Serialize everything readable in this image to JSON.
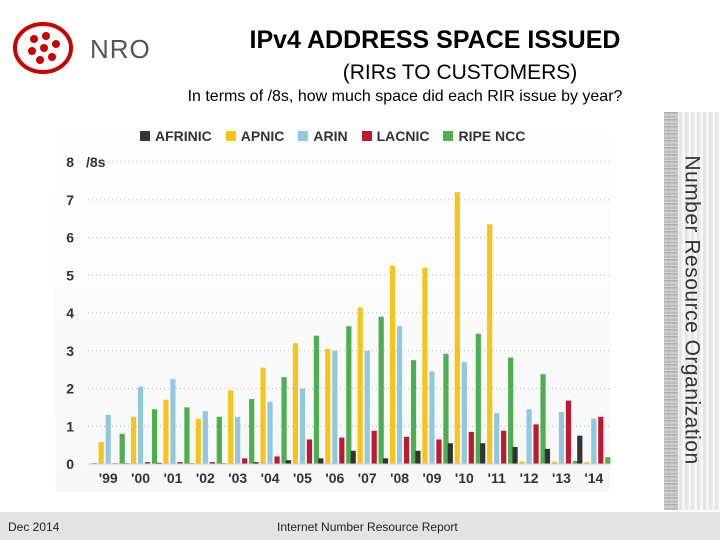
{
  "title": "IPv4 ADDRESS SPACE ISSUED",
  "subtitle": "(RIRs TO CUSTOMERS)",
  "question": "In terms of /8s, how much space did each RIR issue by year?",
  "logo": {
    "text": "NRO",
    "icon": "nro-dots-logo",
    "color": "#cc0000"
  },
  "side_label": "Number Resource Organization",
  "footer": {
    "date": "Dec 2014",
    "report": "Internet Number Resource Report"
  },
  "chart_data": {
    "type": "bar",
    "title": "",
    "xlabel": "",
    "ylabel": "/8s",
    "ylim": [
      0,
      8
    ],
    "yticks": [
      0,
      1,
      2,
      3,
      4,
      5,
      6,
      7,
      8
    ],
    "categories": [
      "'99",
      "'00",
      "'01",
      "'02",
      "'03",
      "'04",
      "'05",
      "'06",
      "'07",
      "'08",
      "'09",
      "'10",
      "'11",
      "'12",
      "'13",
      "'14"
    ],
    "series": [
      {
        "name": "AFRINIC",
        "color": "#333333",
        "values": [
          0.02,
          0.02,
          0.03,
          0.02,
          0.02,
          0.05,
          0.1,
          0.15,
          0.35,
          0.15,
          0.35,
          0.55,
          0.55,
          0.45,
          0.4,
          0.75
        ]
      },
      {
        "name": "APNIC",
        "color": "#f5c518",
        "values": [
          0.58,
          1.25,
          1.7,
          1.2,
          1.95,
          2.55,
          3.2,
          3.05,
          4.15,
          5.25,
          5.2,
          7.2,
          6.35,
          0.07,
          0.06,
          0.05
        ]
      },
      {
        "name": "ARIN",
        "color": "#90c8e0",
        "values": [
          1.3,
          2.05,
          2.25,
          1.4,
          1.25,
          1.65,
          2.0,
          3.0,
          3.0,
          3.65,
          2.45,
          2.7,
          1.35,
          1.45,
          1.38,
          1.2
        ]
      },
      {
        "name": "LACNIC",
        "color": "#c0182e",
        "values": [
          0.02,
          0.05,
          0.05,
          0.05,
          0.15,
          0.2,
          0.65,
          0.7,
          0.88,
          0.72,
          0.65,
          0.85,
          0.88,
          1.05,
          1.68,
          1.25
        ]
      },
      {
        "name": "RIPE NCC",
        "color": "#4caf50",
        "values": [
          0.8,
          1.45,
          1.5,
          1.25,
          1.72,
          2.3,
          3.4,
          3.65,
          3.9,
          2.75,
          2.92,
          3.45,
          2.82,
          2.38,
          0.08,
          0.18
        ]
      }
    ]
  }
}
